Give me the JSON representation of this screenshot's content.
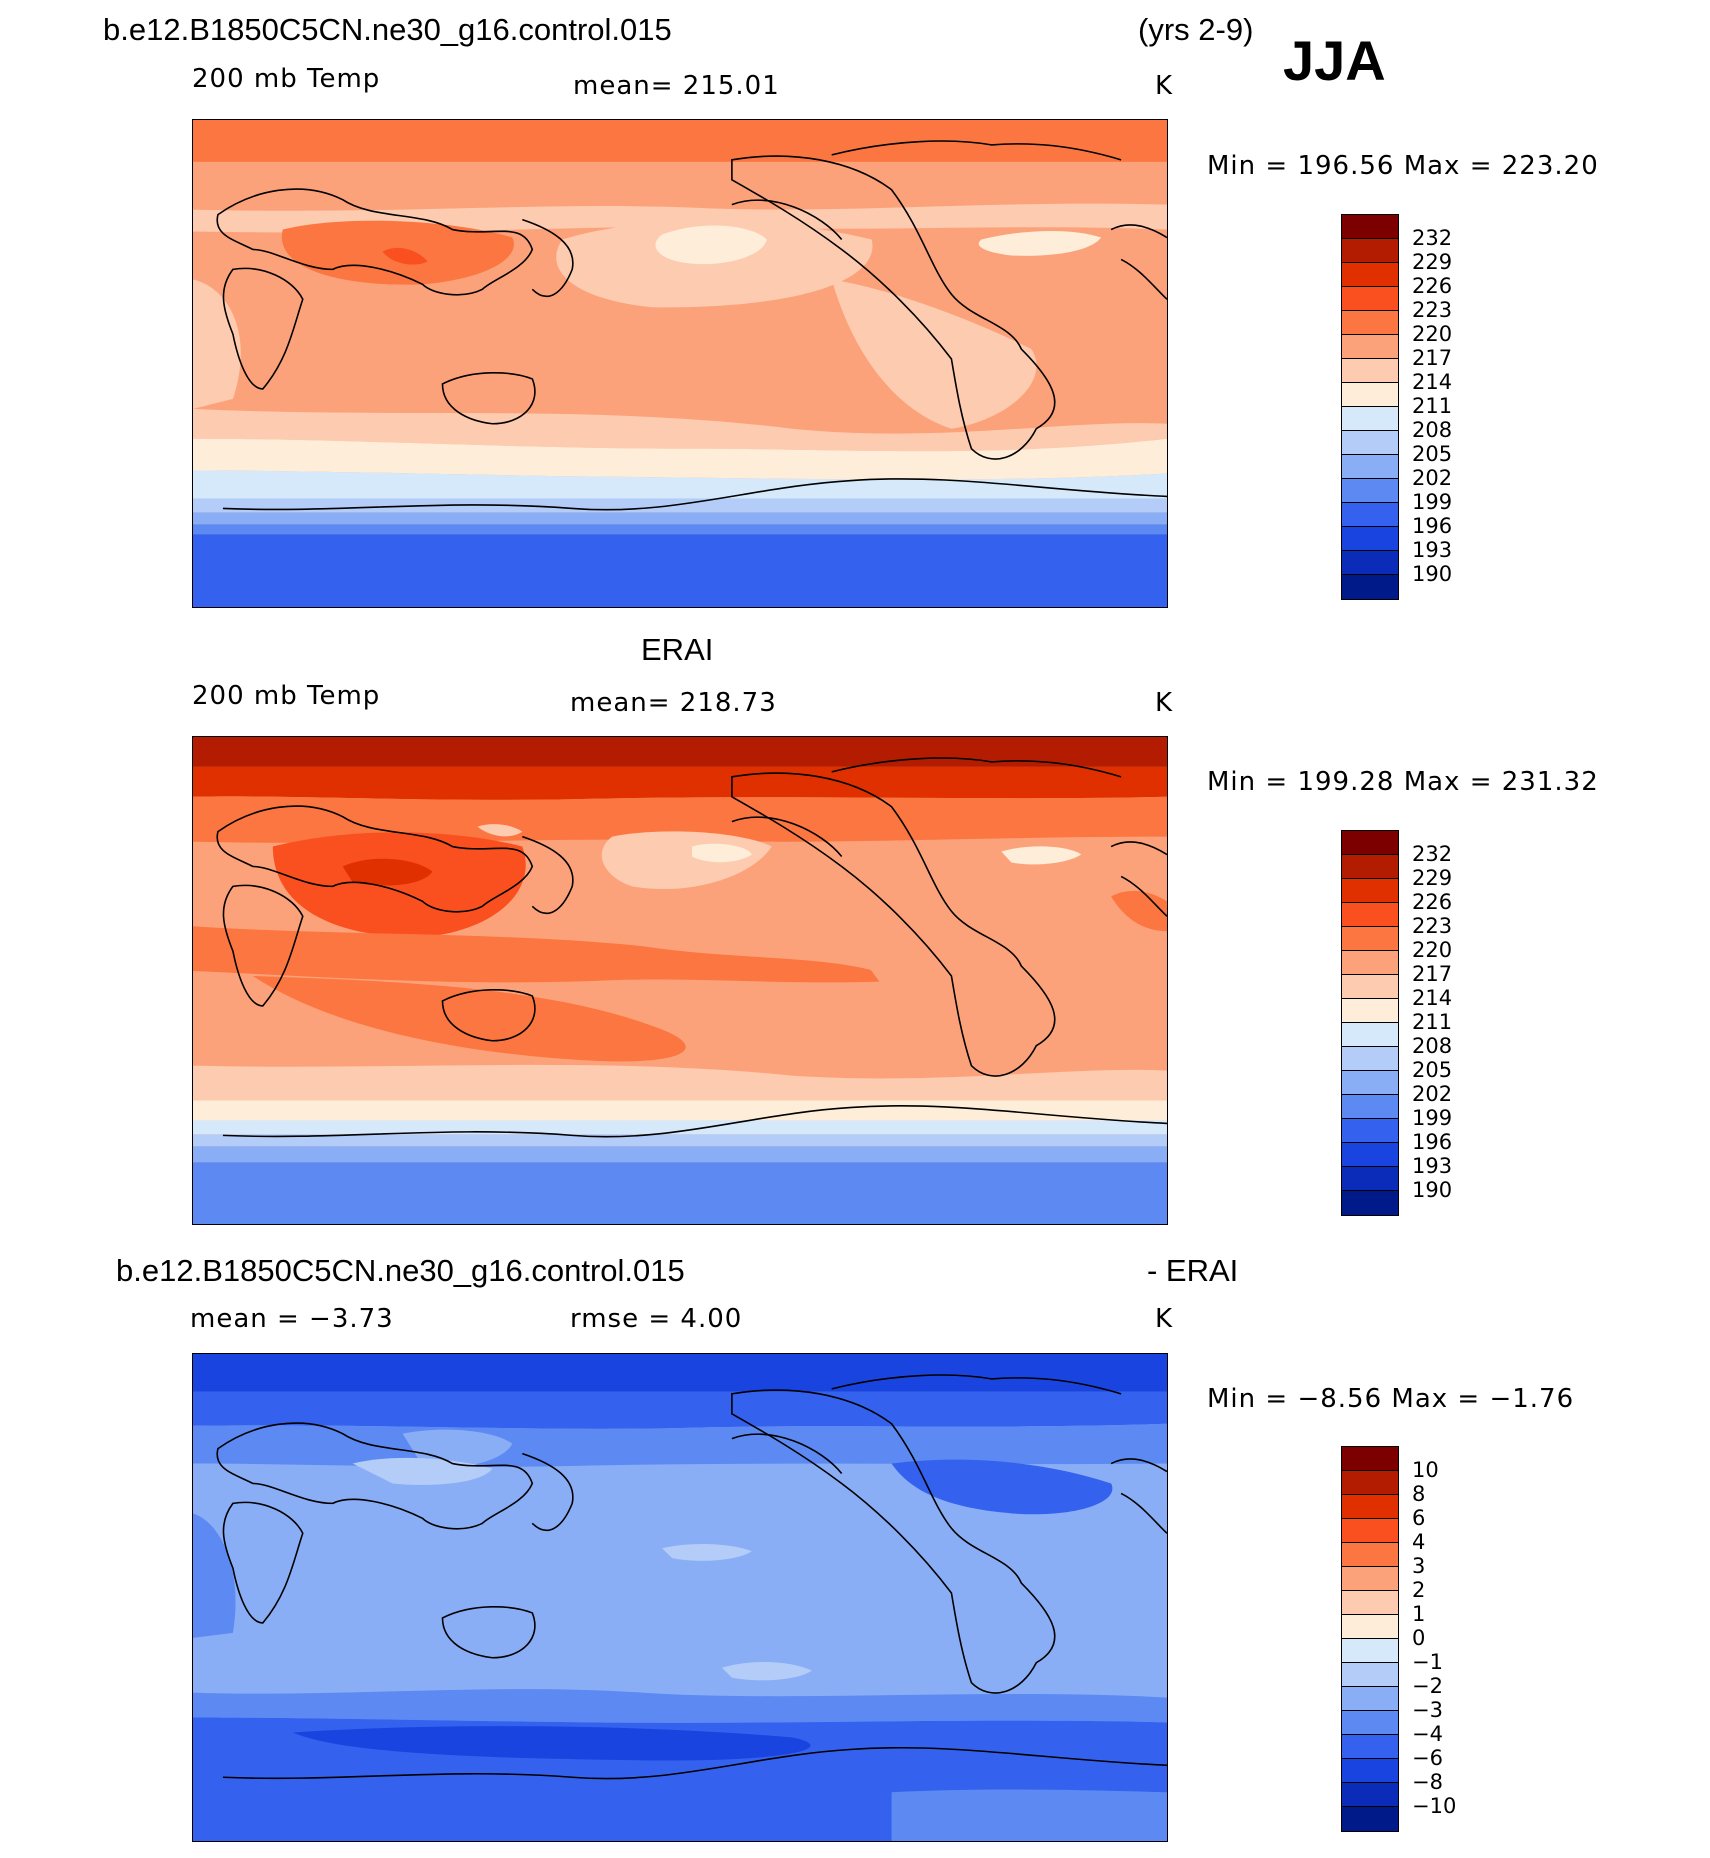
{
  "header": {
    "case_name": "b.e12.B1850C5CN.ne30_g16.control.015",
    "years": "(yrs 2-9)",
    "season": "JJA"
  },
  "panels": [
    {
      "title": "",
      "left_label": "200 mb Temp",
      "stat_label": "mean=  215.01",
      "units": "K",
      "minmax": "Min  =  196.56  Max  =  223.20",
      "colorbar_ticks": [
        "232",
        "229",
        "226",
        "223",
        "220",
        "217",
        "214",
        "211",
        "208",
        "205",
        "202",
        "199",
        "196",
        "193",
        "190"
      ]
    },
    {
      "title": "ERAI",
      "left_label": "200 mb Temp",
      "stat_label": "mean=  218.73",
      "units": "K",
      "minmax": "Min  =  199.28  Max  =  231.32",
      "colorbar_ticks": [
        "232",
        "229",
        "226",
        "223",
        "220",
        "217",
        "214",
        "211",
        "208",
        "205",
        "202",
        "199",
        "196",
        "193",
        "190"
      ]
    },
    {
      "title_left": "b.e12.B1850C5CN.ne30_g16.control.015",
      "title_right": "- ERAI",
      "left_label": "mean  =    −3.73",
      "stat_label": "rmse  =     4.00",
      "units": "K",
      "minmax": "Min  =    −8.56  Max  =    −1.76",
      "colorbar_ticks": [
        "10",
        "8",
        "6",
        "4",
        "3",
        "2",
        "1",
        "0",
        "−1",
        "−2",
        "−3",
        "−4",
        "−6",
        "−8",
        "−10"
      ]
    }
  ],
  "palette": [
    "#7d0000",
    "#b31c00",
    "#e03000",
    "#fa5020",
    "#fb7640",
    "#fca27a",
    "#fdcbb0",
    "#fdedd9",
    "#d6e9fb",
    "#b3cdf8",
    "#8aaef5",
    "#5c8af2",
    "#3462ef",
    "#1a44e0",
    "#0a2cb8",
    "#001a8a"
  ]
}
